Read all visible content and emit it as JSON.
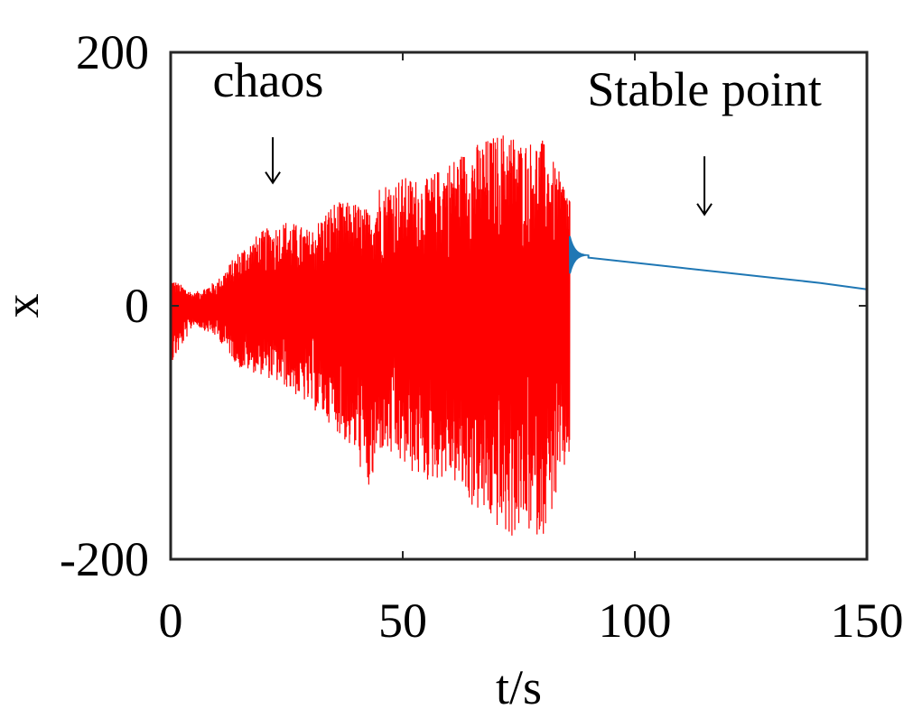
{
  "chart_data": {
    "type": "line",
    "title": "",
    "xlabel": "t/s",
    "ylabel": "x",
    "xlim": [
      0,
      150
    ],
    "ylim": [
      -200,
      200
    ],
    "xticks": [
      0,
      50,
      100,
      150
    ],
    "yticks": [
      -200,
      0,
      200
    ],
    "xtick_labels": [
      "0",
      "50",
      "100",
      "150"
    ],
    "ytick_labels": [
      "-200",
      "0",
      "200"
    ],
    "grid": false,
    "series": [
      {
        "regime": "chaos",
        "color": "#ff0000",
        "x_range": [
          0,
          86
        ],
        "envelope_points": [
          {
            "t": 0,
            "max": 22,
            "min": -48
          },
          {
            "t": 5,
            "max": 10,
            "min": -15
          },
          {
            "t": 10,
            "max": 20,
            "min": -25
          },
          {
            "t": 15,
            "max": 45,
            "min": -50
          },
          {
            "t": 20,
            "max": 60,
            "min": -55
          },
          {
            "t": 25,
            "max": 68,
            "min": -65
          },
          {
            "t": 30,
            "max": 60,
            "min": -80
          },
          {
            "t": 35,
            "max": 82,
            "min": -95
          },
          {
            "t": 40,
            "max": 82,
            "min": -120
          },
          {
            "t": 43,
            "max": 75,
            "min": -152
          },
          {
            "t": 45,
            "max": 97,
            "min": -115
          },
          {
            "t": 50,
            "max": 102,
            "min": -128
          },
          {
            "t": 55,
            "max": 100,
            "min": -140
          },
          {
            "t": 60,
            "max": 115,
            "min": -135
          },
          {
            "t": 65,
            "max": 127,
            "min": -160
          },
          {
            "t": 70,
            "max": 135,
            "min": -175
          },
          {
            "t": 73,
            "max": 140,
            "min": -186
          },
          {
            "t": 75,
            "max": 130,
            "min": -178
          },
          {
            "t": 80,
            "max": 132,
            "min": -183
          },
          {
            "t": 83,
            "max": 110,
            "min": -155
          },
          {
            "t": 86,
            "max": 92,
            "min": -118
          }
        ]
      },
      {
        "regime": "stable point",
        "color": "#1f77b4",
        "x_range": [
          86,
          150
        ],
        "transient": {
          "t_start": 86,
          "t_end": 90,
          "max": 55,
          "min": 15,
          "settle_value": 40
        },
        "points": [
          {
            "t": 90,
            "x": 38
          },
          {
            "t": 100,
            "x": 34
          },
          {
            "t": 110,
            "x": 30
          },
          {
            "t": 120,
            "x": 26
          },
          {
            "t": 130,
            "x": 22
          },
          {
            "t": 140,
            "x": 18
          },
          {
            "t": 150,
            "x": 13
          }
        ]
      }
    ],
    "annotations": [
      {
        "text": "chaos",
        "text_x": 21,
        "text_y": 165,
        "arrow_from": [
          22,
          133
        ],
        "arrow_to": [
          22,
          97
        ]
      },
      {
        "text": "Stable point",
        "text_x": 115,
        "text_y": 158,
        "arrow_from": [
          115,
          118
        ],
        "arrow_to": [
          115,
          72
        ]
      }
    ]
  }
}
